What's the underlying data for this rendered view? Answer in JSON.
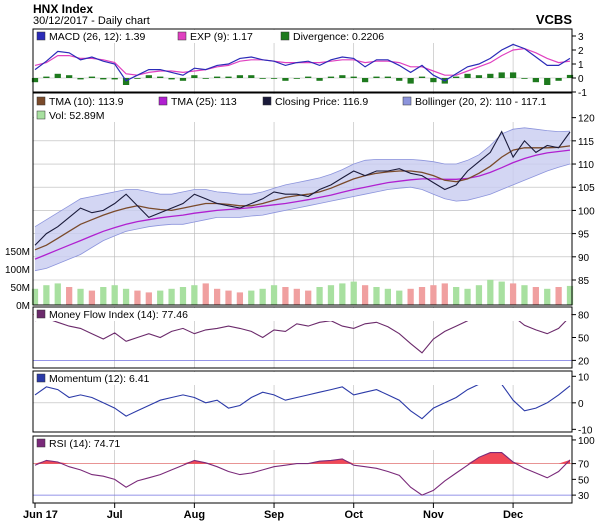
{
  "header": {
    "title": "HNX Index",
    "subtitle": "30/12/2017 - Daily chart",
    "brand": "VCBS"
  },
  "colors": {
    "bg": "#ffffff",
    "frame": "#000000",
    "grid": "#b8b8b8",
    "macd": "#2b2bb8",
    "macd_signal": "#e040c0",
    "divergence": "#1e7a1e",
    "tma10": "#7a4a2a",
    "tma25": "#b020d0",
    "close": "#1a1a3a",
    "band_fill": "#c8ccf0",
    "band_line": "#8c94dc",
    "vol_up": "#a8e0a0",
    "vol_down": "#f0a0a0",
    "mfi": "#6b2a6b",
    "momentum": "#2b3aa8",
    "rsi": "#7a2a7a",
    "overbought_fill": "#f04858",
    "oversold_fill": "#4040d0",
    "ref_upper": "#e07070",
    "ref_lower": "#7070e0"
  },
  "chart_data": [
    {
      "type": "line",
      "name": "macd",
      "ylim": [
        -1,
        3.5
      ],
      "yticks": [
        -1,
        0,
        1,
        2,
        3
      ],
      "legend": [
        {
          "label": "MACD (26, 12): 1.39",
          "color": "#2b2bb8"
        },
        {
          "label": "EXP (9): 1.17",
          "color": "#e040c0"
        },
        {
          "label": "Divergence: 0.2206",
          "color": "#1e7a1e"
        }
      ],
      "series": [
        {
          "name": "MACD (26, 12)",
          "last": 1.39,
          "values": [
            0.6,
            1.2,
            1.9,
            1.8,
            1.3,
            1.5,
            1.2,
            1.0,
            -0.2,
            0.2,
            0.6,
            0.6,
            0.4,
            0.2,
            0.7,
            0.6,
            0.9,
            1.0,
            1.4,
            1.5,
            1.3,
            1.2,
            0.9,
            1.1,
            1.2,
            0.9,
            1.3,
            1.5,
            1.4,
            0.8,
            1.3,
            1.3,
            0.9,
            0.4,
            0.9,
            0.2,
            -0.2,
            0.3,
            0.8,
            1.0,
            1.4,
            2.0,
            2.4,
            2.1,
            1.5,
            0.9,
            0.9,
            1.4
          ]
        },
        {
          "name": "EXP (9)",
          "last": 1.17,
          "values": [
            0.9,
            1.1,
            1.6,
            1.6,
            1.4,
            1.4,
            1.3,
            1.1,
            0.3,
            0.2,
            0.4,
            0.5,
            0.5,
            0.4,
            0.5,
            0.6,
            0.8,
            0.9,
            1.2,
            1.3,
            1.3,
            1.2,
            1.1,
            1.1,
            1.1,
            1.1,
            1.2,
            1.3,
            1.3,
            1.1,
            1.2,
            1.2,
            1.1,
            0.8,
            0.8,
            0.5,
            0.2,
            0.2,
            0.5,
            0.8,
            1.1,
            1.6,
            2.0,
            2.1,
            1.8,
            1.4,
            1.1,
            1.2
          ]
        },
        {
          "name": "Divergence",
          "last": 0.2206,
          "values": [
            -0.3,
            0.1,
            0.3,
            0.2,
            -0.1,
            0.1,
            -0.1,
            -0.1,
            -0.5,
            0.0,
            0.2,
            0.1,
            -0.1,
            -0.2,
            0.2,
            0.0,
            0.1,
            0.1,
            0.2,
            0.2,
            0.0,
            0.0,
            -0.2,
            0.0,
            0.1,
            -0.2,
            0.1,
            0.2,
            0.1,
            -0.3,
            0.1,
            0.1,
            -0.2,
            -0.4,
            0.1,
            -0.3,
            -0.4,
            0.1,
            0.3,
            0.2,
            0.3,
            0.4,
            0.4,
            0.0,
            -0.3,
            -0.5,
            -0.2,
            0.22
          ]
        }
      ]
    },
    {
      "type": "line",
      "name": "price",
      "ylim": [
        85,
        121
      ],
      "yticks": [
        85,
        90,
        95,
        100,
        105,
        110,
        115,
        120
      ],
      "legend": [
        {
          "label": "TMA (10): 113.9",
          "color": "#7a4a2a"
        },
        {
          "label": "TMA (25): 113",
          "color": "#b020d0"
        },
        {
          "label": "Closing Price: 116.9",
          "color": "#1a1a3a"
        },
        {
          "label": "Bollinger (20, 2): 110 - 117.1",
          "color": "#8c94dc"
        },
        {
          "label": "Vol: 52.89M",
          "color": "#a8e0a0"
        }
      ],
      "series": [
        {
          "name": "Closing Price",
          "last": 116.9,
          "values": [
            92.5,
            95.0,
            96.5,
            98.5,
            100.5,
            99.5,
            100.0,
            101.5,
            103.5,
            101.0,
            98.5,
            99.5,
            100.5,
            101.5,
            103.5,
            102.5,
            101.5,
            101.0,
            100.5,
            101.5,
            102.5,
            104.0,
            103.5,
            103.5,
            103.0,
            104.5,
            105.5,
            107.0,
            108.5,
            107.5,
            108.5,
            108.5,
            109.0,
            108.0,
            107.5,
            106.0,
            104.5,
            105.5,
            108.5,
            110.5,
            112.5,
            117.0,
            111.5,
            115.0,
            112.5,
            114.0,
            113.5,
            116.9
          ]
        },
        {
          "name": "TMA (10)",
          "last": 113.9,
          "values": [
            91.5,
            92.5,
            94.0,
            95.5,
            97.0,
            98.0,
            99.0,
            99.8,
            100.5,
            101.0,
            100.5,
            100.2,
            100.0,
            100.5,
            101.0,
            101.5,
            101.5,
            101.3,
            101.0,
            101.0,
            101.5,
            102.2,
            102.8,
            103.2,
            103.5,
            104.0,
            104.8,
            105.8,
            106.8,
            107.5,
            108.0,
            108.3,
            108.5,
            108.5,
            108.2,
            107.5,
            106.5,
            106.2,
            106.8,
            108.0,
            109.5,
            111.5,
            113.0,
            113.5,
            113.5,
            113.5,
            113.6,
            113.9
          ]
        },
        {
          "name": "TMA (25)",
          "last": 113,
          "values": [
            89.5,
            90.5,
            91.5,
            92.5,
            93.5,
            94.5,
            95.5,
            96.3,
            97.0,
            97.6,
            98.0,
            98.4,
            98.7,
            99.0,
            99.4,
            99.7,
            100.0,
            100.2,
            100.4,
            100.6,
            100.9,
            101.2,
            101.5,
            101.9,
            102.3,
            102.8,
            103.3,
            103.9,
            104.5,
            105.0,
            105.5,
            106.0,
            106.3,
            106.6,
            106.8,
            106.8,
            106.7,
            106.7,
            106.9,
            107.4,
            108.2,
            109.2,
            110.3,
            111.2,
            111.9,
            112.4,
            112.7,
            113.0
          ]
        },
        {
          "name": "Bollinger Upper",
          "last": 117.1,
          "values": [
            96.5,
            98.0,
            99.5,
            101.0,
            102.5,
            103.0,
            103.5,
            104.0,
            104.5,
            104.5,
            104.0,
            103.5,
            103.5,
            104.0,
            104.5,
            104.5,
            104.0,
            103.8,
            103.5,
            103.5,
            104.0,
            104.8,
            105.5,
            106.0,
            106.5,
            107.0,
            107.8,
            108.8,
            110.0,
            110.8,
            111.0,
            111.0,
            111.0,
            111.0,
            110.8,
            110.5,
            110.0,
            110.0,
            110.8,
            112.0,
            114.0,
            116.5,
            117.5,
            117.8,
            117.5,
            117.2,
            117.0,
            117.1
          ]
        },
        {
          "name": "Bollinger Lower",
          "last": 110,
          "values": [
            87.0,
            87.5,
            88.5,
            89.5,
            90.5,
            92.0,
            93.5,
            94.5,
            95.5,
            96.0,
            96.5,
            96.8,
            97.0,
            97.0,
            97.5,
            98.0,
            98.5,
            98.5,
            98.5,
            98.8,
            99.0,
            99.5,
            100.0,
            100.5,
            101.0,
            101.5,
            102.0,
            102.5,
            103.0,
            103.5,
            104.0,
            104.5,
            104.8,
            105.0,
            104.5,
            103.5,
            102.5,
            102.0,
            102.2,
            102.8,
            103.5,
            104.5,
            105.5,
            106.5,
            107.5,
            108.5,
            109.3,
            110.0
          ]
        }
      ],
      "volume": {
        "unit": "M",
        "ylim": [
          0,
          200
        ],
        "yticks": [
          0,
          50,
          100,
          150
        ],
        "tick_labels": [
          "0M",
          "50M",
          "100M",
          "150M"
        ],
        "last": 52.89,
        "values": [
          45,
          55,
          60,
          50,
          45,
          40,
          50,
          55,
          45,
          40,
          35,
          40,
          45,
          50,
          55,
          60,
          45,
          40,
          35,
          40,
          45,
          55,
          50,
          45,
          40,
          50,
          55,
          60,
          65,
          55,
          50,
          45,
          40,
          45,
          50,
          55,
          60,
          50,
          45,
          55,
          70,
          65,
          60,
          55,
          50,
          45,
          50,
          53
        ],
        "up": [
          true,
          true,
          true,
          false,
          true,
          false,
          true,
          true,
          true,
          false,
          false,
          true,
          true,
          true,
          true,
          false,
          false,
          false,
          false,
          true,
          true,
          true,
          false,
          false,
          false,
          true,
          true,
          true,
          true,
          false,
          true,
          true,
          true,
          false,
          false,
          false,
          false,
          true,
          true,
          true,
          true,
          true,
          false,
          true,
          false,
          true,
          false,
          true
        ]
      }
    },
    {
      "type": "line",
      "name": "money_flow_index",
      "ylim": [
        10,
        90
      ],
      "yticks": [
        20,
        50,
        80
      ],
      "reference_lines": [
        80,
        20
      ],
      "legend": [
        {
          "label": "Money Flow Index (14): 77.46",
          "color": "#6b2a6b"
        }
      ],
      "series": [
        {
          "name": "Money Flow Index (14)",
          "last": 77.46,
          "values": [
            72,
            75,
            70,
            65,
            62,
            55,
            48,
            56,
            45,
            50,
            55,
            50,
            58,
            62,
            55,
            60,
            62,
            65,
            62,
            58,
            50,
            60,
            58,
            68,
            65,
            70,
            72,
            65,
            62,
            68,
            70,
            64,
            55,
            42,
            30,
            48,
            58,
            65,
            72,
            80,
            86,
            84,
            78,
            66,
            60,
            55,
            62,
            77.46
          ]
        }
      ]
    },
    {
      "type": "line",
      "name": "momentum",
      "ylim": [
        -11,
        12
      ],
      "yticks": [
        -10,
        0,
        10
      ],
      "legend": [
        {
          "label": "Momentum (12): 6.41",
          "color": "#2b3aa8"
        }
      ],
      "series": [
        {
          "name": "Momentum (12)",
          "last": 6.41,
          "values": [
            3,
            6,
            5,
            2,
            3,
            2,
            0,
            -2,
            -5,
            -3,
            -1,
            1,
            2,
            3,
            2,
            0,
            1,
            -2,
            -1,
            2,
            4,
            3,
            1,
            2,
            3,
            4,
            5,
            6,
            3,
            4,
            5,
            3,
            1,
            -3,
            -6,
            -2,
            0,
            2,
            5,
            7,
            9,
            7,
            1,
            -3,
            -2,
            0,
            3,
            6.41
          ]
        }
      ]
    },
    {
      "type": "line",
      "name": "rsi",
      "ylim": [
        20,
        105
      ],
      "yticks": [
        30,
        50,
        70,
        100
      ],
      "reference_lines": [
        70,
        30
      ],
      "legend": [
        {
          "label": "RSI (14): 74.71",
          "color": "#7a2a7a"
        }
      ],
      "series": [
        {
          "name": "RSI (14)",
          "last": 74.71,
          "values": [
            68,
            74,
            72,
            66,
            62,
            56,
            54,
            50,
            40,
            48,
            52,
            56,
            62,
            68,
            74,
            71,
            66,
            60,
            56,
            58,
            62,
            66,
            68,
            70,
            70,
            73,
            74,
            76,
            68,
            66,
            64,
            60,
            55,
            40,
            30,
            36,
            48,
            58,
            68,
            78,
            84,
            84,
            72,
            64,
            58,
            52,
            60,
            74.71
          ]
        }
      ]
    }
  ],
  "x_axis": {
    "tick_labels": [
      "Jun 17",
      "Jul",
      "Aug",
      "Sep",
      "Oct",
      "Nov",
      "Dec"
    ],
    "tick_index": [
      0,
      7,
      14,
      21,
      28,
      35,
      42
    ]
  }
}
